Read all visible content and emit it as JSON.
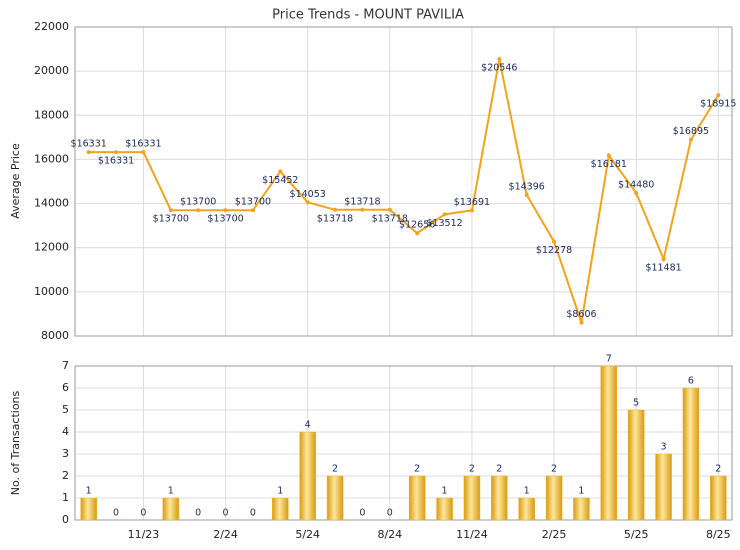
{
  "chart_data": [
    {
      "type": "line",
      "title": "Price Trends - MOUNT PAVILIA",
      "y_label": "Average Price",
      "color": "#f5a31a",
      "values": [
        16331,
        16331,
        16331,
        13700,
        13700,
        13700,
        13700,
        15452,
        14053,
        13718,
        13718,
        13718,
        12656,
        13512,
        13691,
        20546,
        14396,
        12278,
        8606,
        16181,
        14480,
        11481,
        16895,
        18915
      ],
      "value_labels": [
        "$16331",
        "$16331",
        "$16331",
        "$13700",
        "$13700",
        "$13700",
        "$13700",
        "$15452",
        "$14053",
        "$13718",
        "$13718",
        "$13718",
        "$12656",
        "$13512",
        "$13691",
        "$20546",
        "$14396",
        "$12278",
        "$8606",
        "$16181",
        "$14480",
        "$11481",
        "$16895",
        "$18915"
      ],
      "ylim": [
        8000,
        22000
      ],
      "yticks": [
        8000,
        10000,
        12000,
        14000,
        16000,
        18000,
        20000,
        22000
      ],
      "grid": true
    },
    {
      "type": "bar",
      "y_label": "No. of Transactions",
      "color": "#f0b12a",
      "categories": [
        null,
        null,
        "11/23",
        null,
        null,
        "2/24",
        null,
        null,
        "5/24",
        null,
        null,
        "8/24",
        null,
        null,
        "11/24",
        null,
        null,
        "2/25",
        null,
        null,
        "5/25",
        null,
        null,
        "8/25"
      ],
      "values": [
        1,
        0,
        0,
        1,
        0,
        0,
        0,
        1,
        4,
        2,
        0,
        0,
        2,
        1,
        2,
        2,
        1,
        2,
        1,
        7,
        5,
        3,
        6,
        2
      ],
      "ylim": [
        0,
        7
      ],
      "yticks": [
        0,
        1,
        2,
        3,
        4,
        5,
        6,
        7
      ],
      "grid": true
    }
  ]
}
